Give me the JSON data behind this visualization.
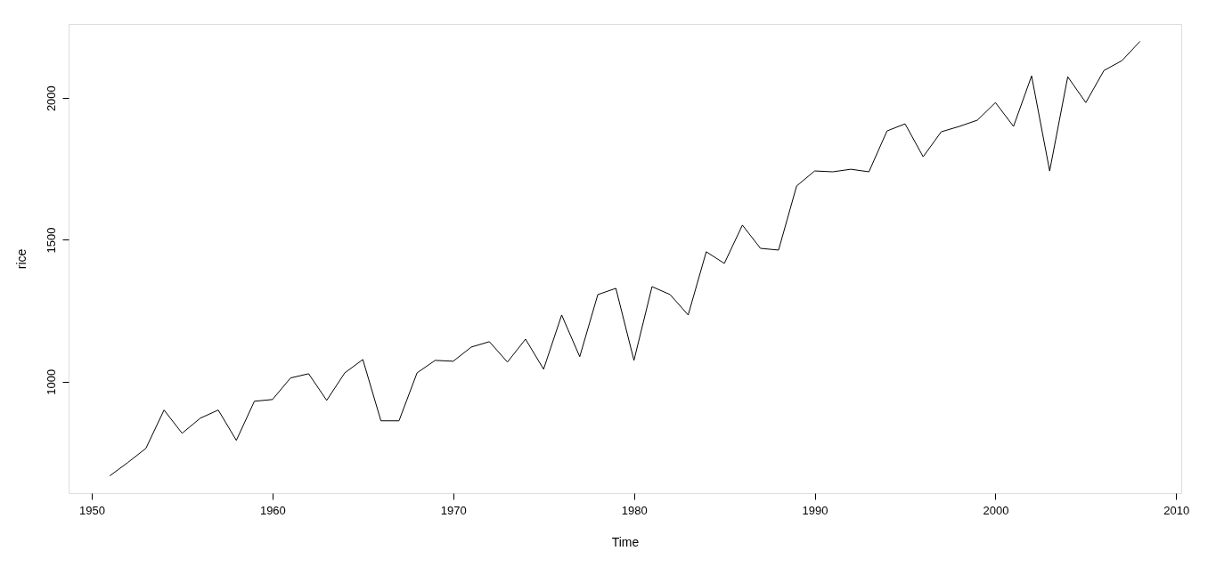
{
  "chart_data": {
    "type": "line",
    "xlabel": "Time",
    "ylabel": "rice",
    "color": "#000000",
    "x": [
      1951,
      1952,
      1953,
      1954,
      1955,
      1956,
      1957,
      1958,
      1959,
      1960,
      1961,
      1962,
      1963,
      1964,
      1965,
      1966,
      1967,
      1968,
      1969,
      1970,
      1971,
      1972,
      1973,
      1974,
      1975,
      1976,
      1977,
      1978,
      1979,
      1980,
      1981,
      1982,
      1983,
      1984,
      1985,
      1986,
      1987,
      1988,
      1989,
      1990,
      1991,
      1992,
      1993,
      1994,
      1995,
      1996,
      1997,
      1998,
      1999,
      2000,
      2001,
      2002,
      2003,
      2004,
      2005,
      2006,
      2007,
      2008
    ],
    "values": [
      668,
      715,
      765,
      900,
      818,
      871,
      900,
      793,
      931,
      937,
      1013,
      1028,
      934,
      1031,
      1078,
      862,
      862,
      1031,
      1075,
      1072,
      1122,
      1141,
      1069,
      1150,
      1044,
      1235,
      1088,
      1307,
      1329,
      1075,
      1335,
      1307,
      1235,
      1458,
      1417,
      1552,
      1470,
      1464,
      1690,
      1743,
      1740,
      1749,
      1740,
      1884,
      1909,
      1793,
      1881,
      1900,
      1922,
      1984,
      1900,
      2078,
      1743,
      2075,
      1984,
      2097,
      2132,
      2200
    ],
    "xlim": [
      1948.72,
      2010.28
    ],
    "ylim": [
      607,
      2261
    ],
    "xticks": [
      1950,
      1960,
      1970,
      1980,
      1990,
      2000,
      2010
    ],
    "yticks": [
      1000,
      1500,
      2000
    ]
  }
}
